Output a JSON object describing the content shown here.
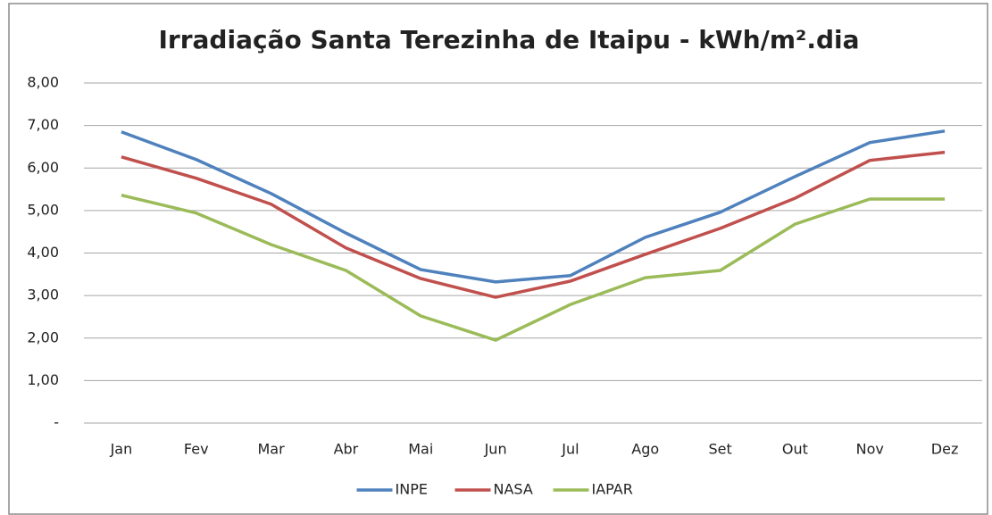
{
  "chart_data": {
    "type": "line",
    "title": "Irradiação Santa Terezinha de Itaipu - kWh/m².dia",
    "categories": [
      "Jan",
      "Fev",
      "Mar",
      "Abr",
      "Mai",
      "Jun",
      "Jul",
      "Ago",
      "Set",
      "Out",
      "Nov",
      "Dez"
    ],
    "series": [
      {
        "name": "INPE",
        "color": "#4f81bd",
        "values": [
          6.85,
          6.2,
          5.4,
          4.47,
          3.61,
          3.32,
          3.47,
          4.37,
          4.96,
          5.8,
          6.6,
          6.87
        ]
      },
      {
        "name": "NASA",
        "color": "#c0504d",
        "values": [
          6.26,
          5.76,
          5.15,
          4.12,
          3.4,
          2.96,
          3.34,
          3.97,
          4.58,
          5.29,
          6.18,
          6.37
        ]
      },
      {
        "name": "IAPAR",
        "color": "#9bbb59",
        "values": [
          5.36,
          4.94,
          4.2,
          3.59,
          2.52,
          1.95,
          2.79,
          3.42,
          3.59,
          4.68,
          5.27,
          5.27
        ]
      }
    ],
    "ylim": [
      0,
      8
    ],
    "yticks": [
      {
        "value": 0,
        "label": "-"
      },
      {
        "value": 1,
        "label": "1,00"
      },
      {
        "value": 2,
        "label": "2,00"
      },
      {
        "value": 3,
        "label": "3,00"
      },
      {
        "value": 4,
        "label": "4,00"
      },
      {
        "value": 5,
        "label": "5,00"
      },
      {
        "value": 6,
        "label": "6,00"
      },
      {
        "value": 7,
        "label": "7,00"
      },
      {
        "value": 8,
        "label": "8,00"
      }
    ],
    "grid": true,
    "legend": "bottom"
  }
}
